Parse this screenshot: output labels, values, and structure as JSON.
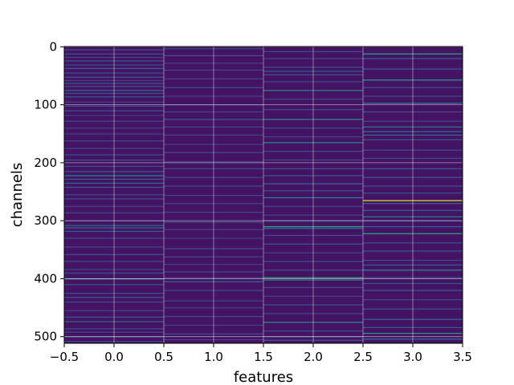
{
  "chart_data": {
    "type": "heatmap",
    "title": "",
    "xlabel": "features",
    "ylabel": "channels",
    "x_columns": [
      0,
      1,
      2,
      3
    ],
    "xlim": [
      -0.5,
      3.5
    ],
    "ylim": [
      511.5,
      -0.5
    ],
    "n_channels": 512,
    "x_ticks": [
      -0.5,
      0.0,
      0.5,
      1.0,
      1.5,
      2.0,
      2.5,
      3.0,
      3.5
    ],
    "x_tick_labels": [
      "−0.5",
      "0.0",
      "0.5",
      "1.0",
      "1.5",
      "2.0",
      "2.5",
      "3.0",
      "3.5"
    ],
    "y_ticks": [
      0,
      100,
      200,
      300,
      400,
      500
    ],
    "y_tick_labels": [
      "0",
      "100",
      "200",
      "300",
      "400",
      "500"
    ],
    "grid": true,
    "colormap": "viridis",
    "colormap_stops": [
      "#440154",
      "#472d7b",
      "#3b528b",
      "#2c728e",
      "#21918c",
      "#28ae80",
      "#5ec962",
      "#addc30",
      "#fde725"
    ],
    "background_value": 0.05,
    "highlights": [
      {
        "feature": 0,
        "channels": [
          5,
          12,
          18,
          24,
          31,
          37,
          45,
          52,
          58,
          63,
          68,
          75,
          80,
          86,
          95,
          102,
          110,
          118,
          128,
          140,
          150,
          162,
          175,
          186,
          195,
          206,
          215,
          222,
          228,
          235,
          242,
          255,
          262,
          275,
          286,
          300,
          308,
          312,
          318,
          330,
          345,
          358,
          370,
          384,
          390,
          400,
          410,
          425,
          432,
          440,
          455,
          466,
          474,
          486,
          492,
          500,
          508
        ],
        "values": [
          0.25,
          0.28,
          0.22,
          0.3,
          0.24,
          0.33,
          0.26,
          0.3,
          0.2,
          0.28,
          0.25,
          0.35,
          0.27,
          0.3,
          0.22,
          0.26,
          0.28,
          0.2,
          0.24,
          0.22,
          0.2,
          0.25,
          0.22,
          0.24,
          0.28,
          0.26,
          0.32,
          0.45,
          0.3,
          0.35,
          0.28,
          0.24,
          0.26,
          0.22,
          0.25,
          0.24,
          0.35,
          0.38,
          0.3,
          0.25,
          0.22,
          0.27,
          0.24,
          0.22,
          0.28,
          0.55,
          0.3,
          0.26,
          0.28,
          0.24,
          0.22,
          0.28,
          0.35,
          0.25,
          0.22,
          0.28,
          0.24
        ]
      },
      {
        "feature": 1,
        "channels": [
          3,
          15,
          28,
          40,
          55,
          70,
          85,
          100,
          112,
          125,
          138,
          152,
          168,
          182,
          198,
          210,
          225,
          240,
          256,
          270,
          285,
          302,
          315,
          330,
          348,
          362,
          375,
          388,
          398,
          405,
          420,
          438,
          450,
          465,
          480,
          495,
          505
        ],
        "values": [
          0.22,
          0.25,
          0.2,
          0.24,
          0.22,
          0.26,
          0.2,
          0.24,
          0.22,
          0.32,
          0.24,
          0.22,
          0.2,
          0.25,
          0.22,
          0.24,
          0.22,
          0.25,
          0.2,
          0.22,
          0.24,
          0.3,
          0.22,
          0.2,
          0.25,
          0.22,
          0.2,
          0.24,
          0.22,
          0.35,
          0.24,
          0.22,
          0.2,
          0.24,
          0.22,
          0.25,
          0.2
        ]
      },
      {
        "feature": 2,
        "channels": [
          8,
          20,
          35,
          42,
          48,
          60,
          75,
          90,
          108,
          125,
          140,
          155,
          165,
          180,
          195,
          210,
          222,
          236,
          248,
          260,
          275,
          290,
          300,
          310,
          313,
          325,
          340,
          355,
          370,
          385,
          398,
          402,
          415,
          430,
          445,
          460,
          475,
          490,
          500,
          506
        ],
        "values": [
          0.24,
          0.22,
          0.26,
          0.3,
          0.28,
          0.24,
          0.45,
          0.22,
          0.25,
          0.5,
          0.24,
          0.22,
          0.48,
          0.24,
          0.22,
          0.26,
          0.3,
          0.38,
          0.26,
          0.45,
          0.24,
          0.22,
          0.3,
          0.62,
          0.4,
          0.24,
          0.26,
          0.22,
          0.28,
          0.25,
          0.6,
          0.45,
          0.24,
          0.22,
          0.26,
          0.24,
          0.5,
          0.26,
          0.28,
          0.3
        ]
      },
      {
        "feature": 3,
        "channels": [
          12,
          20,
          38,
          57,
          70,
          85,
          97,
          112,
          128,
          138,
          146,
          152,
          160,
          178,
          192,
          210,
          225,
          240,
          252,
          265,
          270,
          282,
          293,
          300,
          310,
          322,
          338,
          352,
          368,
          376,
          385,
          398,
          408,
          420,
          436,
          452,
          470,
          484,
          494,
          504
        ],
        "values": [
          0.6,
          0.32,
          0.28,
          0.55,
          0.26,
          0.24,
          0.45,
          0.26,
          0.24,
          0.42,
          0.38,
          0.35,
          0.3,
          0.26,
          0.24,
          0.28,
          0.3,
          0.26,
          0.28,
          0.98,
          0.35,
          0.32,
          0.45,
          0.3,
          0.32,
          0.6,
          0.26,
          0.28,
          0.24,
          0.3,
          0.5,
          0.28,
          0.26,
          0.3,
          0.24,
          0.26,
          0.34,
          0.3,
          0.55,
          0.38
        ]
      }
    ]
  }
}
